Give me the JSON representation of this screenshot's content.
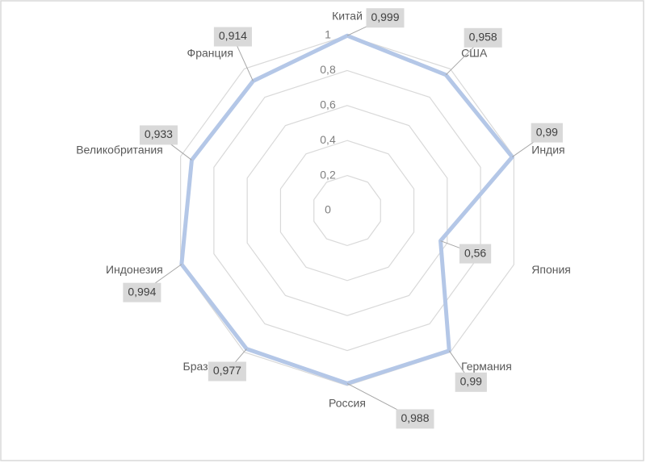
{
  "chart_data": {
    "type": "radar",
    "categories": [
      "Китай",
      "США",
      "Индия",
      "Япония",
      "Германия",
      "Россия",
      "Бразилия",
      "Индонезия",
      "Великобритания",
      "Франция"
    ],
    "values": [
      0.999,
      0.958,
      0.99,
      0.56,
      0.99,
      0.988,
      0.977,
      0.994,
      0.933,
      0.914
    ],
    "value_labels": [
      "0,999",
      "0,958",
      "0,99",
      "0,56",
      "0,99",
      "0,988",
      "0,977",
      "0,994",
      "0,933",
      "0,914"
    ],
    "color": "#b4c7e7",
    "rlim": [
      0,
      1
    ],
    "rticks": [
      0,
      {
        "value": 0.2,
        "label": "0,2"
      },
      {
        "value": 0.4,
        "label": "0,4"
      },
      {
        "value": 0.6,
        "label": "0,6"
      },
      {
        "value": 0.8,
        "label": "0,8"
      },
      1
    ],
    "grid": true
  }
}
